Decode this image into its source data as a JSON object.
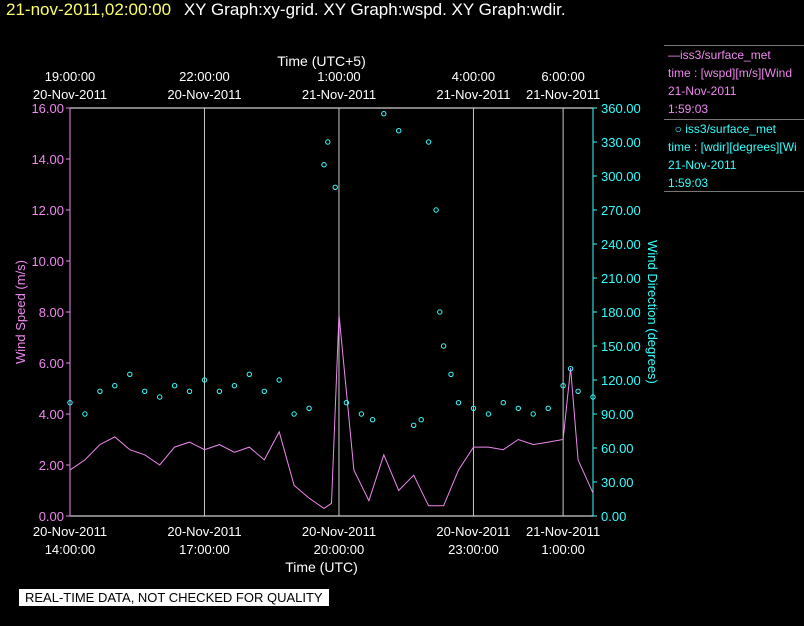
{
  "header": {
    "datetime": "21-nov-2011,02:00:00",
    "graphs": "XY Graph:xy-grid.  XY Graph:wspd.  XY Graph:wdir."
  },
  "legend": {
    "series1": {
      "name": "iss3/surface_met",
      "field": "time : [wspd][m/s][Wind",
      "date": "21-Nov-2011",
      "time": "1:59:03"
    },
    "series2": {
      "name": "iss3/surface_met",
      "field": "time : [wdir][degrees][Wi",
      "date": "21-Nov-2011",
      "time": "1:59:03"
    }
  },
  "disclaimer": "REAL-TIME DATA, NOT CHECKED FOR QUALITY",
  "colors": {
    "speed": "#ee88ee",
    "direction": "#33ffff",
    "grid": "#c8c8c8",
    "datetime": "#ffff66"
  },
  "chart_data": {
    "type": "line",
    "top_axis": {
      "label": "Time (UTC+5)",
      "ticks": [
        {
          "time": "20-Nov-2011 14:00",
          "line1": "19:00:00",
          "line2": "20-Nov-2011"
        },
        {
          "time": "20-Nov-2011 17:00",
          "line1": "22:00:00",
          "line2": "20-Nov-2011"
        },
        {
          "time": "20-Nov-2011 20:00",
          "line1": "1:00:00",
          "line2": "21-Nov-2011"
        },
        {
          "time": "20-Nov-2011 23:00",
          "line1": "4:00:00",
          "line2": "21-Nov-2011"
        },
        {
          "time": "21-Nov-2011 01:00",
          "line1": "6:00:00",
          "line2": "21-Nov-2011"
        }
      ]
    },
    "bottom_axis": {
      "label": "Time (UTC)",
      "range": [
        "20-Nov-2011 14:00",
        "21-Nov-2011 01:40"
      ],
      "ticks": [
        {
          "time": "20-Nov-2011 14:00",
          "line1": "20-Nov-2011",
          "line2": "14:00:00"
        },
        {
          "time": "20-Nov-2011 17:00",
          "line1": "20-Nov-2011",
          "line2": "17:00:00"
        },
        {
          "time": "20-Nov-2011 20:00",
          "line1": "20-Nov-2011",
          "line2": "20:00:00"
        },
        {
          "time": "20-Nov-2011 23:00",
          "line1": "20-Nov-2011",
          "line2": "23:00:00"
        },
        {
          "time": "21-Nov-2011 01:00",
          "line1": "21-Nov-2011",
          "line2": "1:00:00"
        }
      ]
    },
    "left_axis": {
      "label": "Wind Speed (m/s)",
      "ylim": [
        0,
        16
      ],
      "ticks": [
        "0.00",
        "2.00",
        "4.00",
        "6.00",
        "8.00",
        "10.00",
        "12.00",
        "14.00",
        "16.00"
      ]
    },
    "right_axis": {
      "label": "Wind Direction (degrees)",
      "ylim": [
        0,
        360
      ],
      "ticks": [
        "0.00",
        "30.00",
        "60.00",
        "90.00",
        "120.00",
        "150.00",
        "180.00",
        "210.00",
        "240.00",
        "270.00",
        "300.00",
        "330.00",
        "360.00"
      ]
    },
    "grid": "vertical lines at bottom-axis ticks",
    "series": [
      {
        "name": "iss3/surface_met",
        "style": "line",
        "axis": "left",
        "x": [
          "20-Nov-2011 14:00",
          "20-Nov-2011 14:20",
          "20-Nov-2011 14:40",
          "20-Nov-2011 15:00",
          "20-Nov-2011 15:20",
          "20-Nov-2011 15:40",
          "20-Nov-2011 16:00",
          "20-Nov-2011 16:20",
          "20-Nov-2011 16:40",
          "20-Nov-2011 17:00",
          "20-Nov-2011 17:20",
          "20-Nov-2011 17:40",
          "20-Nov-2011 18:00",
          "20-Nov-2011 18:20",
          "20-Nov-2011 18:40",
          "20-Nov-2011 19:00",
          "20-Nov-2011 19:20",
          "20-Nov-2011 19:40",
          "20-Nov-2011 19:50",
          "20-Nov-2011 20:00",
          "20-Nov-2011 20:20",
          "20-Nov-2011 20:40",
          "20-Nov-2011 21:00",
          "20-Nov-2011 21:20",
          "20-Nov-2011 21:40",
          "20-Nov-2011 22:00",
          "20-Nov-2011 22:20",
          "20-Nov-2011 22:40",
          "20-Nov-2011 23:00",
          "20-Nov-2011 23:20",
          "20-Nov-2011 23:40",
          "21-Nov-2011 00:00",
          "21-Nov-2011 00:20",
          "21-Nov-2011 00:40",
          "21-Nov-2011 01:00",
          "21-Nov-2011 01:10",
          "21-Nov-2011 01:20",
          "21-Nov-2011 01:40"
        ],
        "values": [
          1.8,
          2.2,
          2.8,
          3.1,
          2.6,
          2.4,
          2.0,
          2.7,
          2.9,
          2.6,
          2.8,
          2.5,
          2.7,
          2.2,
          3.3,
          1.2,
          0.7,
          0.3,
          0.5,
          7.9,
          1.8,
          0.6,
          2.4,
          1.0,
          1.6,
          0.4,
          0.4,
          1.8,
          2.7,
          2.7,
          2.6,
          3.0,
          2.8,
          2.9,
          3.0,
          5.8,
          2.2,
          0.9
        ]
      },
      {
        "name": "iss3/surface_met",
        "style": "scatter",
        "axis": "right",
        "x": [
          "20-Nov-2011 14:00",
          "20-Nov-2011 14:20",
          "20-Nov-2011 14:40",
          "20-Nov-2011 15:00",
          "20-Nov-2011 15:20",
          "20-Nov-2011 15:40",
          "20-Nov-2011 16:00",
          "20-Nov-2011 16:20",
          "20-Nov-2011 16:40",
          "20-Nov-2011 17:00",
          "20-Nov-2011 17:20",
          "20-Nov-2011 17:40",
          "20-Nov-2011 18:00",
          "20-Nov-2011 18:20",
          "20-Nov-2011 18:40",
          "20-Nov-2011 19:00",
          "20-Nov-2011 19:20",
          "20-Nov-2011 19:40",
          "20-Nov-2011 19:45",
          "20-Nov-2011 19:55",
          "20-Nov-2011 20:10",
          "20-Nov-2011 20:30",
          "20-Nov-2011 20:45",
          "20-Nov-2011 21:00",
          "20-Nov-2011 21:20",
          "20-Nov-2011 21:40",
          "20-Nov-2011 21:50",
          "20-Nov-2011 22:00",
          "20-Nov-2011 22:10",
          "20-Nov-2011 22:15",
          "20-Nov-2011 22:20",
          "20-Nov-2011 22:30",
          "20-Nov-2011 22:40",
          "20-Nov-2011 23:00",
          "20-Nov-2011 23:20",
          "20-Nov-2011 23:40",
          "21-Nov-2011 00:00",
          "21-Nov-2011 00:20",
          "21-Nov-2011 00:40",
          "21-Nov-2011 01:00",
          "21-Nov-2011 01:10",
          "21-Nov-2011 01:20",
          "21-Nov-2011 01:40"
        ],
        "values": [
          100,
          90,
          110,
          115,
          125,
          110,
          105,
          115,
          110,
          120,
          110,
          115,
          125,
          110,
          120,
          90,
          95,
          310,
          330,
          290,
          100,
          90,
          85,
          355,
          340,
          80,
          85,
          330,
          270,
          180,
          150,
          125,
          100,
          95,
          90,
          100,
          95,
          90,
          95,
          115,
          130,
          110,
          105
        ]
      }
    ]
  }
}
